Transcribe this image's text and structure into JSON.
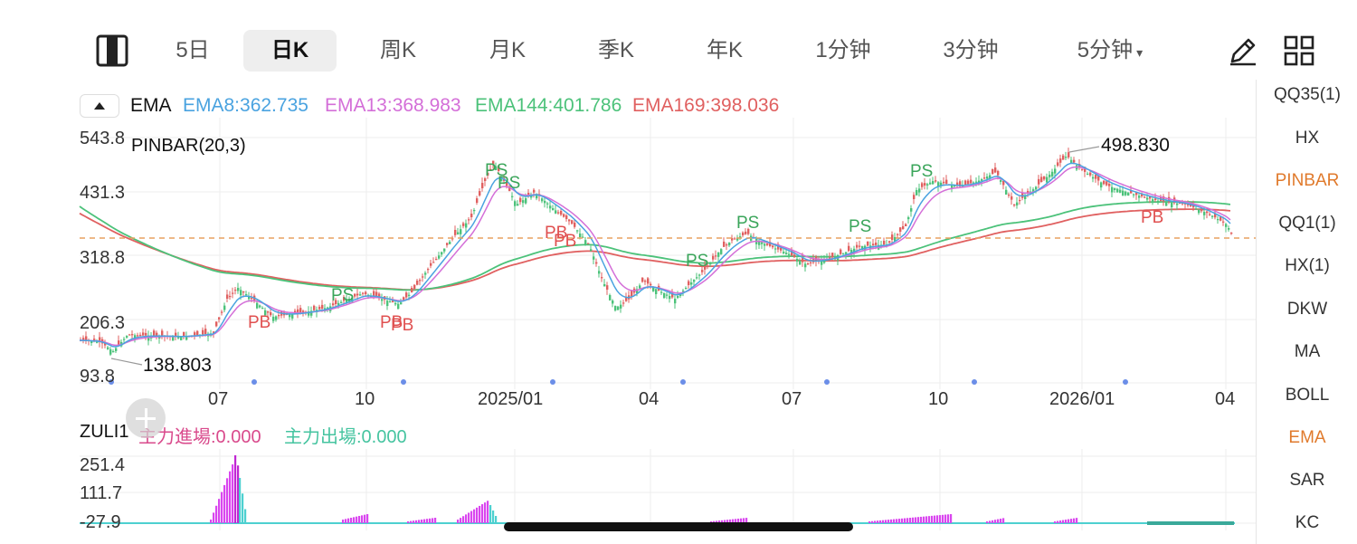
{
  "toolbar": {
    "tabs": [
      {
        "label": "5日"
      },
      {
        "label": "日K",
        "active": true
      },
      {
        "label": "周K"
      },
      {
        "label": "月K"
      },
      {
        "label": "季K"
      },
      {
        "label": "年K"
      },
      {
        "label": "1分钟"
      },
      {
        "label": "3分钟"
      },
      {
        "label": "5分钟",
        "caret": "▾"
      }
    ],
    "icons": [
      "layout-toggle-icon",
      "pencil-draw-icon",
      "grid-layout-icon"
    ]
  },
  "ema_legend": {
    "name": "EMA",
    "items": [
      {
        "label": "EMA8:362.735",
        "color": "#4aa3e0"
      },
      {
        "label": "EMA13:368.983",
        "color": "#d46fd8"
      },
      {
        "label": "EMA144:401.786",
        "color": "#4cc27a"
      },
      {
        "label": "EMA169:398.036",
        "color": "#e06060"
      }
    ]
  },
  "main_chart": {
    "indicator_label": "PINBAR(20,3)",
    "y_labels": [
      "543.8",
      "431.3",
      "318.8",
      "206.3",
      "93.8"
    ],
    "x_labels": [
      "07",
      "10",
      "2025/01",
      "04",
      "07",
      "10",
      "2026/01",
      "04"
    ],
    "high_annotation": "498.830",
    "low_annotation": "138.803",
    "signal_ps": [
      "PS",
      "PS",
      "PS",
      "PS",
      "PS",
      "PS",
      "PS",
      "PS"
    ],
    "signal_pb": [
      "PB",
      "PB",
      "PB",
      "PB",
      "PB",
      "PB"
    ],
    "colors": {
      "up": "#4cc27a",
      "down": "#e06060",
      "ps": "#3aa55a",
      "pb": "#e05050",
      "ref_line": "#e8a060"
    }
  },
  "sub_chart": {
    "name": "ZULI1",
    "main_in": "主力進場:0.000",
    "main_out": "主力出場:0.000",
    "y_labels": [
      "251.4",
      "111.7",
      "-27.9"
    ],
    "colors": {
      "in": "#d946ef",
      "out": "#4dd0d0"
    }
  },
  "sidebar": {
    "items": [
      {
        "label": "QQ35(1)"
      },
      {
        "label": "HX"
      },
      {
        "label": "PINBAR",
        "highlight": true
      },
      {
        "label": "QQ1(1)"
      },
      {
        "label": "HX(1)"
      },
      {
        "label": "DKW"
      },
      {
        "label": "MA"
      },
      {
        "label": "BOLL"
      },
      {
        "label": "EMA",
        "highlight": true
      },
      {
        "label": "SAR"
      },
      {
        "label": "KC"
      }
    ]
  }
}
